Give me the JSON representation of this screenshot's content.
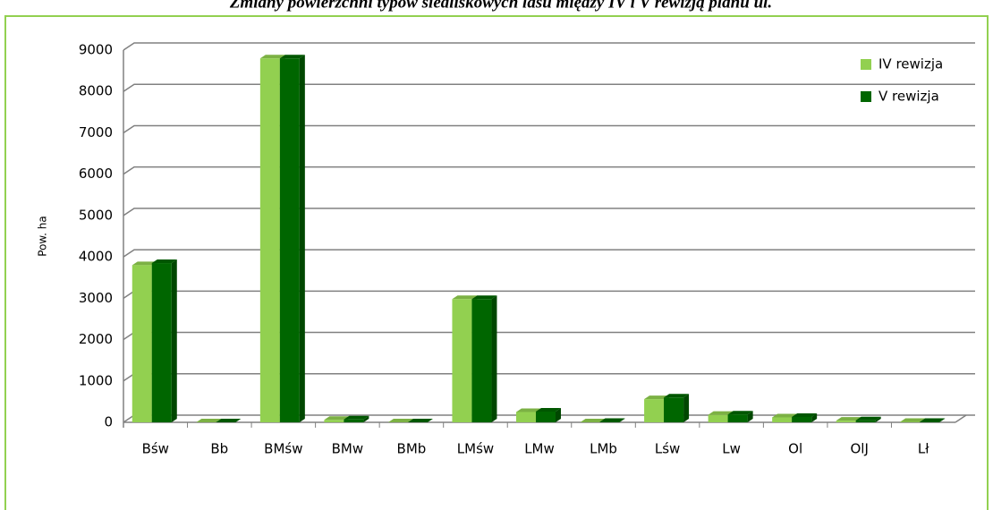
{
  "chart_data": {
    "type": "bar3d",
    "title": "Zmiany powierzchni typów siedliskowych lasu między IV i V rewizją planu ul.",
    "y_label": "Pow. ha",
    "categories": [
      "Bśw",
      "Bb",
      "BMśw",
      "BMw",
      "BMb",
      "LMśw",
      "LMw",
      "LMb",
      "Lśw",
      "Lw",
      "Ol",
      "OlJ",
      "Lł"
    ],
    "series": [
      {
        "name": "IV rewizja",
        "color": "#92d050",
        "values": [
          3800,
          0,
          8800,
          60,
          0,
          2980,
          250,
          0,
          560,
          180,
          120,
          40,
          10
        ]
      },
      {
        "name": "V rewizja",
        "color": "#006600",
        "values": [
          3850,
          0,
          8800,
          70,
          0,
          2980,
          260,
          10,
          600,
          190,
          130,
          50,
          10
        ]
      }
    ],
    "ylim": [
      0,
      9000
    ],
    "yticks": [
      0,
      1000,
      2000,
      3000,
      4000,
      5000,
      6000,
      7000,
      8000,
      9000
    ],
    "grid": true,
    "legend": "top-right"
  }
}
